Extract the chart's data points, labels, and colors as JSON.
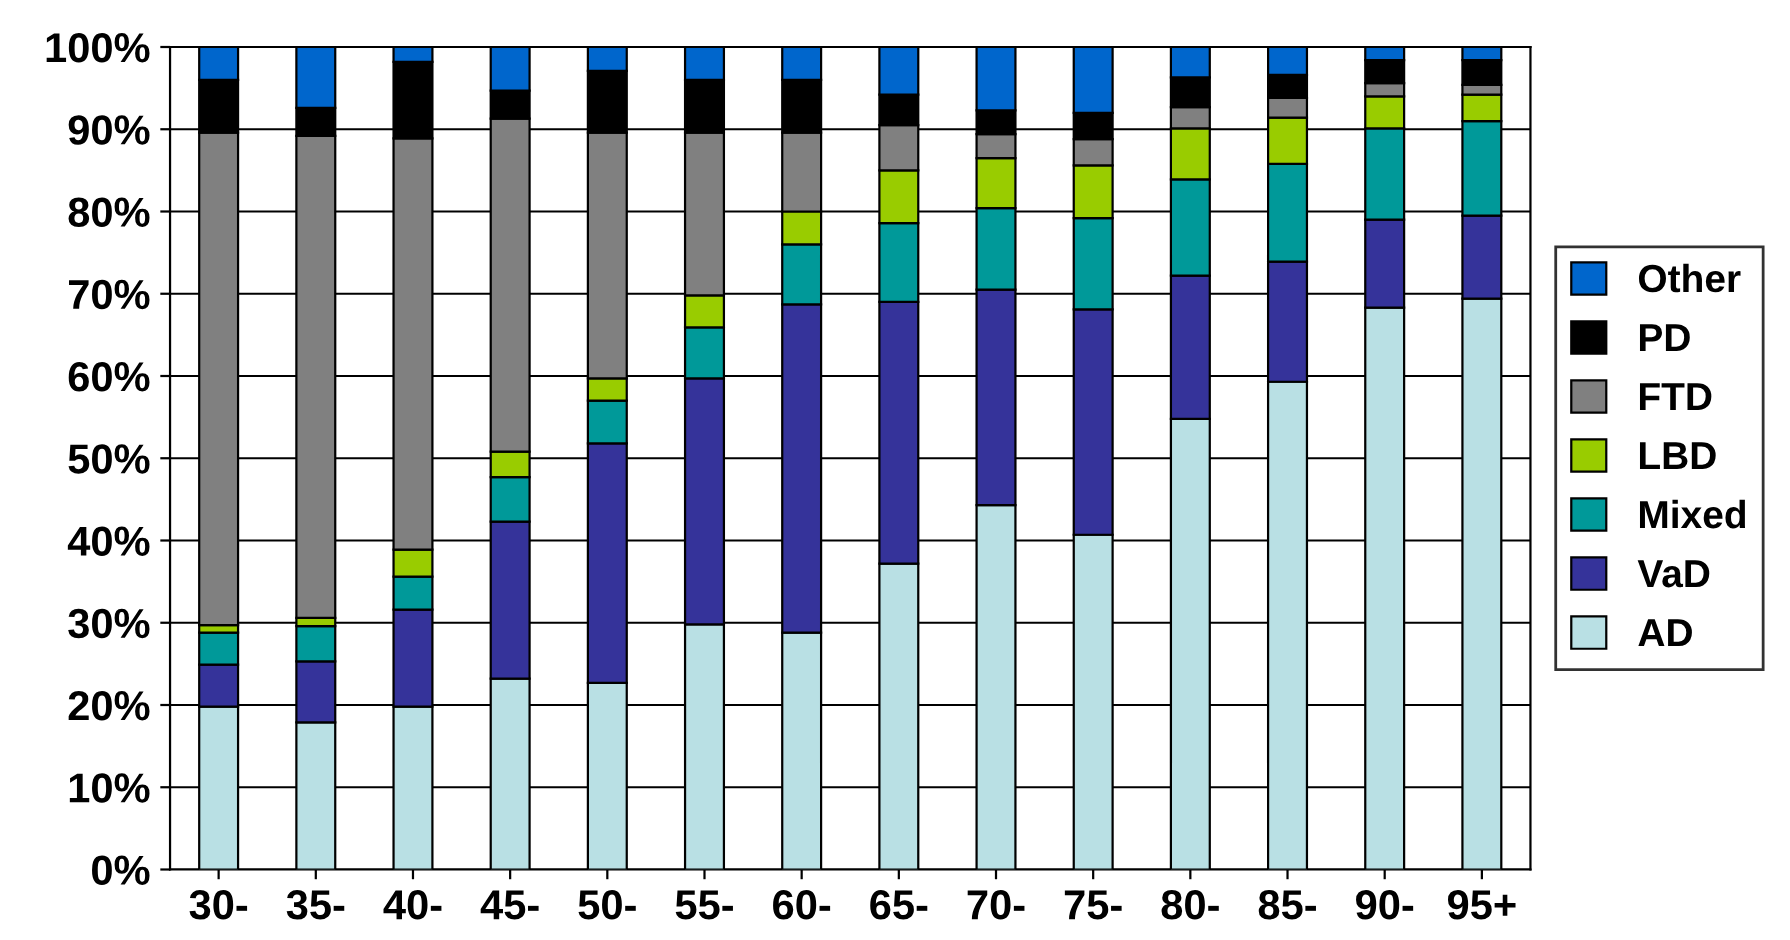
{
  "chart_data": {
    "type": "bar",
    "stacked": true,
    "categories": [
      "30-",
      "35-",
      "40-",
      "45-",
      "50-",
      "55-",
      "60-",
      "65-",
      "70-",
      "75-",
      "80-",
      "85-",
      "90-",
      "95+"
    ],
    "series": [
      {
        "name": "AD",
        "color": "#b9e0e4",
        "values": [
          19.8,
          17.9,
          19.8,
          23.2,
          22.7,
          29.8,
          28.8,
          37.2,
          44.3,
          40.7,
          54.8,
          59.3,
          68.3,
          69.4
        ]
      },
      {
        "name": "VaD",
        "color": "#35339a",
        "values": [
          5.1,
          7.4,
          11.8,
          19.1,
          29.1,
          29.9,
          39.9,
          31.8,
          26.2,
          27.4,
          17.4,
          14.6,
          10.7,
          10.1
        ]
      },
      {
        "name": "Mixed",
        "color": "#009999",
        "values": [
          3.9,
          4.3,
          4.0,
          5.4,
          5.2,
          6.2,
          7.3,
          9.6,
          9.9,
          11.1,
          11.7,
          11.9,
          11.1,
          11.5
        ]
      },
      {
        "name": "LBD",
        "color": "#99cc00",
        "values": [
          0.9,
          1.0,
          3.3,
          3.1,
          2.7,
          3.9,
          4.0,
          6.4,
          6.1,
          6.4,
          6.2,
          5.6,
          3.9,
          3.2
        ]
      },
      {
        "name": "FTD",
        "color": "#808080",
        "values": [
          59.9,
          58.6,
          50.0,
          40.5,
          29.9,
          19.8,
          9.6,
          5.5,
          2.9,
          3.2,
          2.6,
          2.4,
          1.6,
          1.2
        ]
      },
      {
        "name": "PD",
        "color": "#000000",
        "values": [
          6.4,
          3.4,
          9.3,
          3.4,
          7.5,
          6.4,
          6.4,
          3.7,
          2.9,
          3.2,
          3.6,
          2.8,
          2.8,
          3.0
        ]
      },
      {
        "name": "Other",
        "color": "#0066cc",
        "values": [
          4.0,
          7.4,
          1.8,
          5.3,
          2.9,
          4.0,
          4.0,
          5.8,
          7.7,
          8.0,
          3.7,
          3.4,
          1.6,
          1.6
        ]
      }
    ],
    "ylim": [
      0,
      100
    ],
    "yticks": [
      {
        "value": 0,
        "label": "0%"
      },
      {
        "value": 10,
        "label": "10%"
      },
      {
        "value": 20,
        "label": "20%"
      },
      {
        "value": 30,
        "label": "30%"
      },
      {
        "value": 40,
        "label": "40%"
      },
      {
        "value": 50,
        "label": "50%"
      },
      {
        "value": 60,
        "label": "60%"
      },
      {
        "value": 70,
        "label": "70%"
      },
      {
        "value": 80,
        "label": "80%"
      },
      {
        "value": 90,
        "label": "90%"
      },
      {
        "value": 100,
        "label": "100%"
      }
    ],
    "grid": "y",
    "legend": "right"
  }
}
